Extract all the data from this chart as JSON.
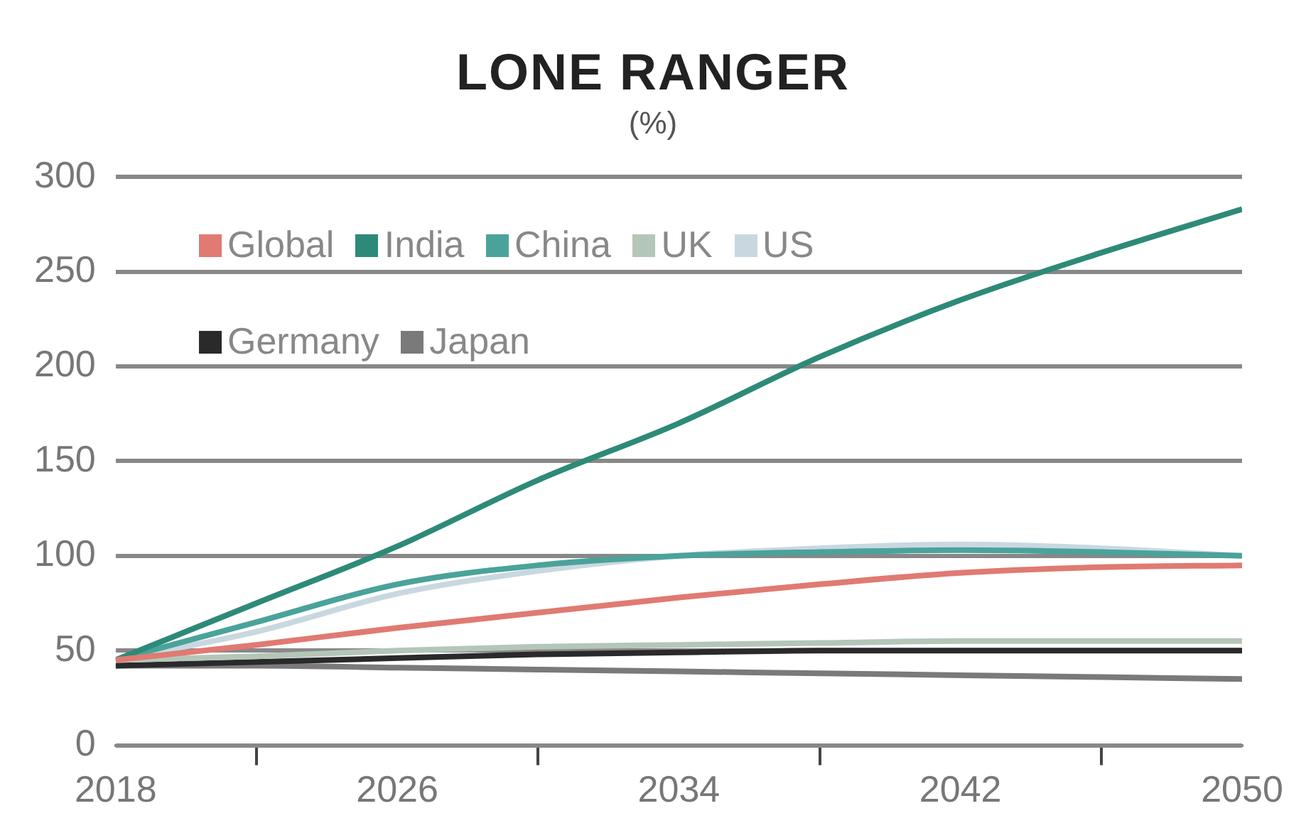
{
  "chart_data": {
    "type": "line",
    "title": "LONE RANGER",
    "subtitle": "(%)",
    "x": [
      2018,
      2022,
      2026,
      2030,
      2034,
      2038,
      2042,
      2046,
      2050
    ],
    "series": [
      {
        "name": "Global",
        "color": "#e07a72",
        "values": [
          45,
          53,
          62,
          70,
          78,
          85,
          91,
          94,
          95
        ]
      },
      {
        "name": "India",
        "color": "#2e8a78",
        "values": [
          45,
          75,
          105,
          140,
          170,
          205,
          235,
          260,
          283
        ]
      },
      {
        "name": "China",
        "color": "#4aa39a",
        "values": [
          45,
          65,
          85,
          95,
          100,
          102,
          103,
          102,
          100
        ]
      },
      {
        "name": "UK",
        "color": "#b4c6b8",
        "values": [
          45,
          47,
          50,
          52,
          53,
          54,
          55,
          55,
          55
        ]
      },
      {
        "name": "US",
        "color": "#c9d8e0",
        "values": [
          45,
          60,
          80,
          92,
          100,
          104,
          106,
          104,
          100
        ]
      },
      {
        "name": "Germany",
        "color": "#2a2a2a",
        "values": [
          42,
          44,
          46,
          48,
          49,
          50,
          50,
          50,
          50
        ]
      },
      {
        "name": "Japan",
        "color": "#7a7a7a",
        "values": [
          42,
          42,
          41,
          40,
          39,
          38,
          37,
          36,
          35
        ]
      }
    ],
    "xlim": [
      2018,
      2050
    ],
    "xticks": [
      2018,
      {
        "value": 2022,
        "label": null
      },
      2026,
      {
        "value": 2030,
        "label": null
      },
      2034,
      {
        "value": 2038,
        "label": null
      },
      2042,
      {
        "value": 2046,
        "label": null
      },
      2050
    ],
    "ylim": [
      0,
      300
    ],
    "yticks": [
      0,
      50,
      100,
      150,
      200,
      250,
      300
    ],
    "grid": "y",
    "legend": "top left",
    "marker": "none",
    "line_style": "solid"
  }
}
